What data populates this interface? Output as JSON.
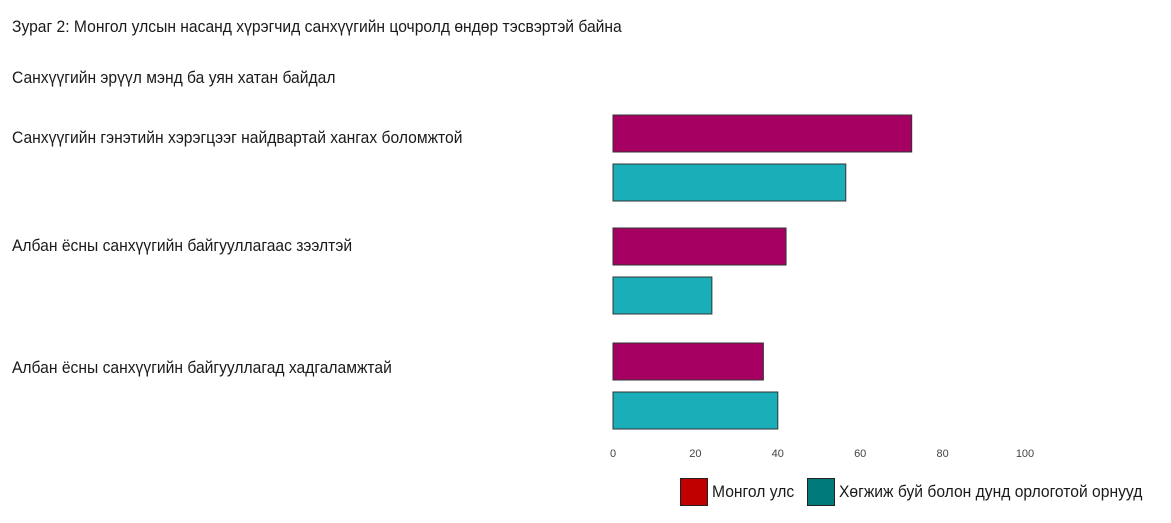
{
  "figure": {
    "title": "Зураг 2: Монгол улсын насанд хүрэгчид санхүүгийн цочролд өндөр тэсвэртэй байна",
    "section_title": "Санхүүгийн эрүүл мэнд ба уян хатан байдал"
  },
  "chart_data": {
    "type": "bar",
    "orientation": "horizontal",
    "categories": [
      "Санхүүгийн гэнэтийн хэрэгцээг найдвартай хангах боломжтой",
      "Албан ёсны санхүүгийн байгууллагаас зээлтэй",
      "Албан ёсны санхүүгийн байгууллагад хадгаламжтай"
    ],
    "series": [
      {
        "name": "Монгол улс",
        "values": [
          72.5,
          42,
          36.5
        ],
        "color": "#A50062",
        "legend_color": "#C00000"
      },
      {
        "name": "Хөгжиж буй болон дунд орлоготой орнууд",
        "values": [
          56.5,
          24,
          40
        ],
        "color": "#1AAFB8",
        "legend_color": "#007A7A"
      }
    ],
    "xlim": [
      0,
      100
    ],
    "xticks": [
      "0",
      "20",
      "40",
      "60",
      "80",
      "100"
    ],
    "grid": false,
    "legend_position": "bottom-right"
  }
}
